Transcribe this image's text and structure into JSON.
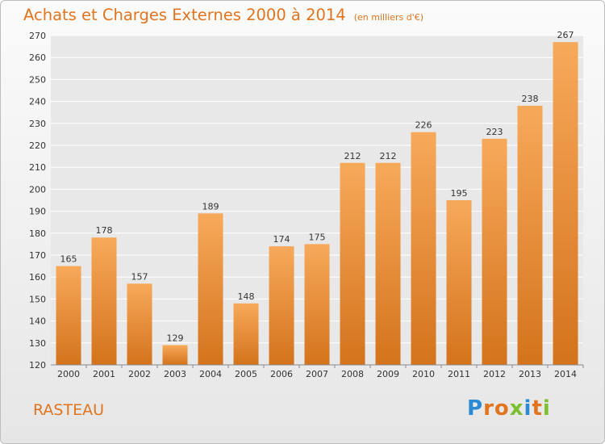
{
  "title": "Achats et Charges Externes 2000 à 2014",
  "unit": "(en milliers d'€)",
  "place": "RASTEAU",
  "logo": {
    "text": "Proxiti",
    "letters": [
      "P",
      "r",
      "o",
      "x",
      "i",
      "t",
      "i"
    ],
    "colors": [
      "#2a8ad4",
      "#e2741e",
      "#e2741e",
      "#7cbf2f",
      "#2a8ad4",
      "#e2741e",
      "#7cbf2f"
    ]
  },
  "colors": {
    "accent": "#e2741e",
    "bar_top": "#f7a95a",
    "bar_bottom": "#d4731c",
    "grid": "#ffffff"
  },
  "chart_data": {
    "type": "bar",
    "categories": [
      "2000",
      "2001",
      "2002",
      "2003",
      "2004",
      "2005",
      "2006",
      "2007",
      "2008",
      "2009",
      "2010",
      "2011",
      "2012",
      "2013",
      "2014"
    ],
    "values": [
      165,
      178,
      157,
      129,
      189,
      148,
      174,
      175,
      212,
      212,
      226,
      195,
      223,
      238,
      267
    ],
    "ylim": [
      120,
      270
    ],
    "yticks": [
      120,
      130,
      140,
      150,
      160,
      170,
      180,
      190,
      200,
      210,
      220,
      230,
      240,
      250,
      260,
      270
    ],
    "grid": true
  }
}
